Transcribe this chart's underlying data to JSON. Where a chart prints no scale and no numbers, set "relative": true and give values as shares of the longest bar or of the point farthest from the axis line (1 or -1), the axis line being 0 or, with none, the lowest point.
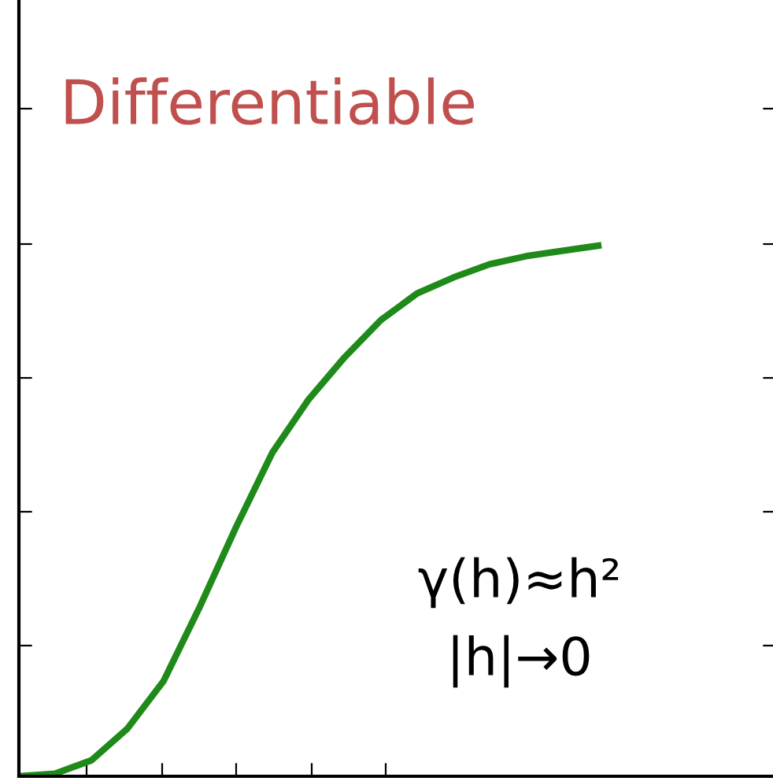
{
  "chart_data": {
    "type": "line",
    "relative": true,
    "title": "Differentiable",
    "annotations": [
      "γ(h)≈h²",
      "|h|→0"
    ],
    "categories": [
      null,
      null,
      null,
      null,
      null,
      null,
      null,
      null,
      null,
      null,
      null,
      null,
      null,
      null,
      null,
      null,
      null
    ],
    "series": [
      {
        "color": "#1f8a1a",
        "values": [
          0,
          0.005,
          0.03,
          0.09,
          0.18,
          0.32,
          0.47,
          0.61,
          0.71,
          0.79,
          0.86,
          0.91,
          0.94,
          0.965,
          0.98,
          0.99,
          1.0
        ]
      }
    ],
    "tick_labels": false,
    "grid": false,
    "legend": false,
    "marker": "none",
    "line_style": "solid"
  }
}
